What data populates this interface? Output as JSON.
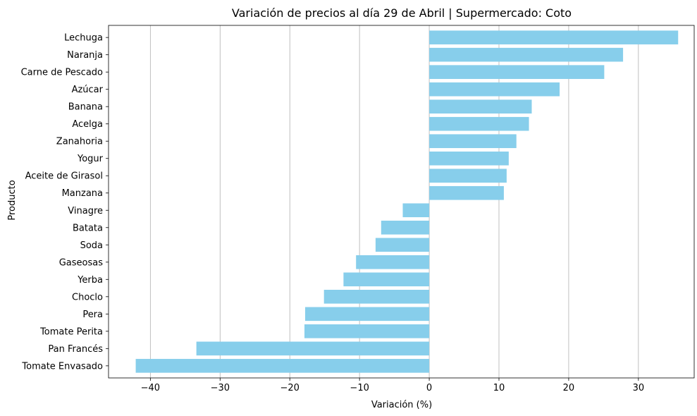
{
  "chart_data": {
    "type": "bar",
    "orientation": "horizontal",
    "title": "Variación de precios al día 29 de Abril | Supermercado: Coto",
    "xlabel": "Variación (%)",
    "ylabel": "Producto",
    "xlim": [
      -46,
      38
    ],
    "xticks": [
      -40,
      -30,
      -20,
      -10,
      0,
      10,
      20,
      30
    ],
    "xtick_labels": [
      "−40",
      "−30",
      "−20",
      "−10",
      "0",
      "10",
      "20",
      "30"
    ],
    "grid": "x",
    "bar_color": "#87CEEB",
    "categories": [
      "Lechuga",
      "Naranja",
      "Carne de Pescado",
      "Azúcar",
      "Banana",
      "Acelga",
      "Zanahoria",
      "Yogur",
      "Aceite de Girasol",
      "Manzana",
      "Vinagre",
      "Batata",
      "Soda",
      "Gaseosas",
      "Yerba",
      "Choclo",
      "Pera",
      "Tomate Perita",
      "Pan Francés",
      "Tomate Envasado"
    ],
    "values": [
      35.7,
      27.8,
      25.1,
      18.7,
      14.7,
      14.3,
      12.5,
      11.4,
      11.1,
      10.7,
      -3.8,
      -6.9,
      -7.7,
      -10.5,
      -12.3,
      -15.1,
      -17.8,
      -17.9,
      -33.4,
      -42.1
    ]
  }
}
